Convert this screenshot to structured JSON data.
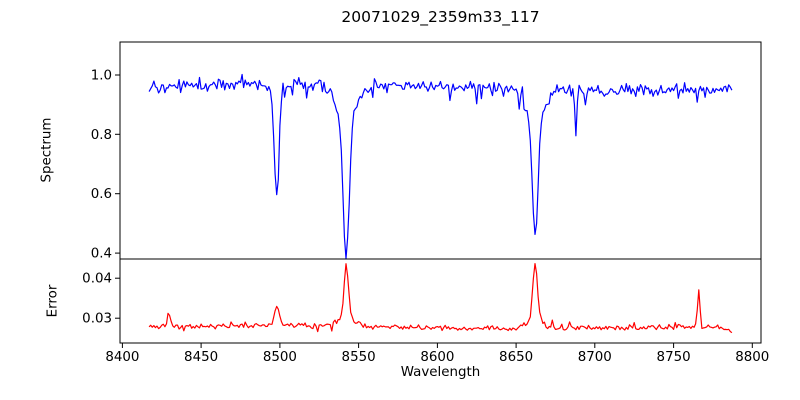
{
  "figure": {
    "background": "#ffffff",
    "spine_color": "#000000"
  },
  "chart_data": {
    "type": "line",
    "title": "20071029_2359m33_117",
    "xlabel": "Wavelength",
    "grid": false,
    "legend": false,
    "xlim": [
      8398.5,
      8805.5
    ],
    "xticks": [
      8400,
      8450,
      8500,
      8550,
      8600,
      8650,
      8700,
      8750,
      8800
    ],
    "x_start": 8417,
    "x_end": 8787,
    "x_step": 1,
    "panels": [
      {
        "name": "spectrum",
        "ylabel": "Spectrum",
        "ylim": [
          0.38,
          1.111
        ],
        "yticks": [
          0.4,
          0.6,
          0.8,
          1.0
        ],
        "ytick_labels": [
          "0.4",
          "0.6",
          "0.8",
          "1.0"
        ],
        "line_color": "#0000ff",
        "model": {
          "base_level": 0.958,
          "waves": [
            {
              "amp": 0.01,
              "period": 70,
              "phase": 0.25
            }
          ],
          "noise_amplitude": 0.026,
          "spike_down": {
            "rate": 0.06,
            "amp": 0.05
          },
          "spike_up": {
            "rate": 0.04,
            "amp": 0.035
          },
          "features": [
            {
              "center": 8498.0,
              "amplitude": -0.355,
              "width": 2.0
            },
            {
              "center": 8498.0,
              "amplitude": -0.025,
              "width": 5.5
            },
            {
              "center": 8542.1,
              "amplitude": -0.44,
              "width": 2.6
            },
            {
              "center": 8542.1,
              "amplitude": -0.135,
              "width": 8.5
            },
            {
              "center": 8662.1,
              "amplitude": -0.385,
              "width": 2.4
            },
            {
              "center": 8662.1,
              "amplitude": -0.125,
              "width": 7.5
            },
            {
              "center": 8688.0,
              "amplitude": -0.155,
              "width": 0.9
            }
          ]
        },
        "continuum_level": 0.96,
        "absorption_minima": [
          {
            "wavelength": 8498,
            "value": 0.59
          },
          {
            "wavelength": 8542,
            "value": 0.4
          },
          {
            "wavelength": 8662,
            "value": 0.45
          },
          {
            "wavelength": 8688,
            "value": 0.8
          }
        ]
      },
      {
        "name": "error",
        "ylabel": "Error",
        "ylim": [
          0.0238,
          0.0448
        ],
        "yticks": [
          0.03,
          0.04
        ],
        "ytick_labels": [
          "0.03",
          "0.04"
        ],
        "line_color": "#ff0000",
        "model": {
          "base_level": 0.02765,
          "waves": [
            {
              "amp": 0.00025,
              "period": 47,
              "phase": 0
            },
            {
              "amp": 0.0002,
              "period": 120,
              "phase": 1.0
            }
          ],
          "noise_amplitude": 0.0008,
          "spike_down": {
            "rate": 0.03,
            "amp": 0.0012
          },
          "spike_up": {
            "rate": 0.05,
            "amp": 0.0016
          },
          "end_taper": {
            "start": 8778,
            "slope": -8e-05
          },
          "features": [
            {
              "center": 8429.5,
              "amplitude": 0.0034,
              "width": 1.2
            },
            {
              "center": 8498.0,
              "amplitude": 0.0047,
              "width": 1.7
            },
            {
              "center": 8498.0,
              "amplitude": 0.0007,
              "width": 5.0
            },
            {
              "center": 8542.1,
              "amplitude": 0.0135,
              "width": 2.0
            },
            {
              "center": 8542.1,
              "amplitude": 0.0018,
              "width": 8.0
            },
            {
              "center": 8662.1,
              "amplitude": 0.015,
              "width": 2.1
            },
            {
              "center": 8662.1,
              "amplitude": 0.0018,
              "width": 8.0
            },
            {
              "center": 8766.0,
              "amplitude": 0.0098,
              "width": 1.0
            }
          ]
        },
        "baseline_level": 0.0278,
        "peaks": [
          {
            "wavelength": 8430,
            "value": 0.031
          },
          {
            "wavelength": 8498,
            "value": 0.033
          },
          {
            "wavelength": 8542,
            "value": 0.042
          },
          {
            "wavelength": 8662,
            "value": 0.044
          },
          {
            "wavelength": 8766,
            "value": 0.038
          }
        ]
      }
    ]
  }
}
